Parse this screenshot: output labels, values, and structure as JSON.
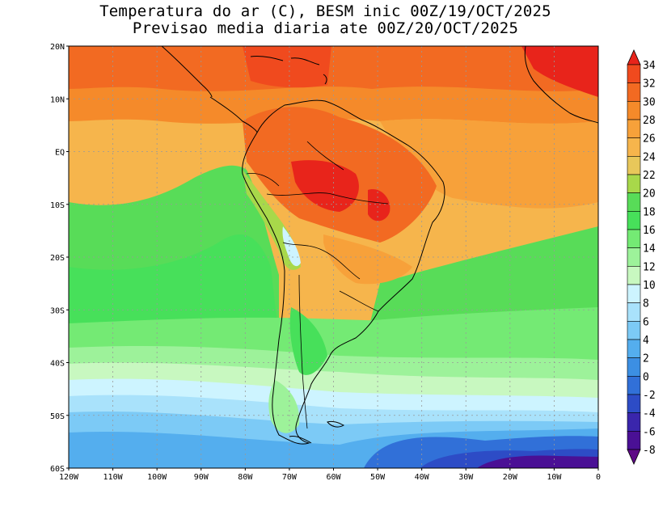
{
  "title": {
    "line1": "Temperatura do ar (C), BESM inic 00Z/19/OCT/2025",
    "line2": "Previsao media diaria ate 00Z/20/OCT/2025"
  },
  "map": {
    "lon_range": [
      -120,
      0
    ],
    "lat_range": [
      -60,
      20
    ],
    "grid": "dotted",
    "lat_labels": [
      "20N",
      "10N",
      "EQ",
      "10S",
      "20S",
      "30S",
      "40S",
      "50S",
      "60S"
    ],
    "lat_values": [
      20,
      10,
      0,
      -10,
      -20,
      -30,
      -40,
      -50,
      -60
    ],
    "lon_labels": [
      "120W",
      "110W",
      "100W",
      "90W",
      "80W",
      "70W",
      "60W",
      "50W",
      "40W",
      "30W",
      "20W",
      "10W",
      "0"
    ],
    "lon_values": [
      -120,
      -110,
      -100,
      -90,
      -80,
      -70,
      -60,
      -50,
      -40,
      -30,
      -20,
      -10,
      0
    ],
    "region": "South America",
    "variable": "air temperature"
  },
  "colorbar": {
    "labels": [
      "34",
      "32",
      "30",
      "28",
      "26",
      "24",
      "22",
      "20",
      "18",
      "16",
      "14",
      "12",
      "10",
      "8",
      "6",
      "4",
      "2",
      "0",
      "-2",
      "-4",
      "-6",
      "-8"
    ],
    "colors": [
      "#e8241b",
      "#f04a1e",
      "#f26a22",
      "#f58a2a",
      "#f7a13a",
      "#f6b54c",
      "#e8c75a",
      "#a8d84a",
      "#58dc58",
      "#47e05a",
      "#74ea74",
      "#9df29a",
      "#c8f8c0",
      "#cdf4ff",
      "#a9e2fb",
      "#7ccaf6",
      "#54aeee",
      "#3c8fe3",
      "#3170d8",
      "#2d4cc6",
      "#3a26ac",
      "#4a1095",
      "#5e0a86"
    ]
  }
}
